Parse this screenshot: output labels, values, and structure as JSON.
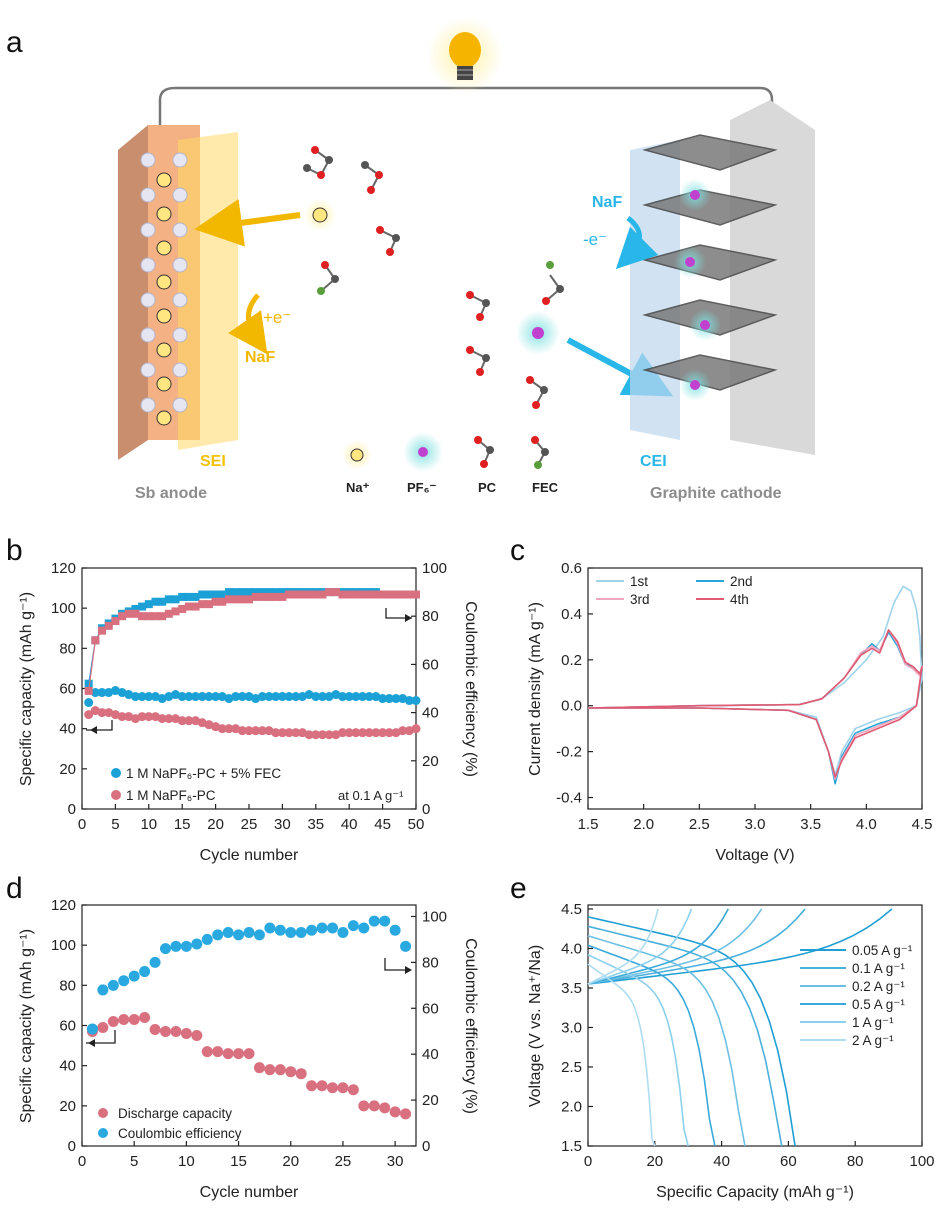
{
  "panel_labels": {
    "a": "a",
    "b": "b",
    "c": "c",
    "d": "d",
    "e": "e"
  },
  "schematic": {
    "anode_label": "Sb anode",
    "cathode_label": "Graphite cathode",
    "sei_label": "SEI",
    "cei_label": "CEI",
    "reduction_label": "+e⁻",
    "oxidation_label": "-e⁻",
    "naf_anode": "NaF",
    "naf_cathode": "NaF",
    "legend": [
      "Na⁺",
      "PF₆⁻",
      "PC",
      "FEC"
    ],
    "colors": {
      "anode": "#f4b183",
      "sei": "#ffd966",
      "cei": "#bdd7ee",
      "cathode": "#d9d9d9",
      "arrow_yellow": "#f2b800",
      "arrow_blue": "#29b6e8"
    }
  },
  "chart_data": [
    {
      "id": "b",
      "type": "scatter",
      "xlabel": "Cycle number",
      "ylabel": "Specific capacity (mAh g⁻¹)",
      "y2label": "Coulombic efficiency (%)",
      "xlim": [
        0,
        50
      ],
      "ylim": [
        0,
        120
      ],
      "y2lim": [
        0,
        100
      ],
      "xticks": [
        "0",
        "5",
        "10",
        "15",
        "20",
        "25",
        "30",
        "35",
        "40",
        "45",
        "50"
      ],
      "yticks": [
        "0",
        "20",
        "40",
        "60",
        "80",
        "100",
        "120"
      ],
      "y2ticks": [
        "0",
        "20",
        "40",
        "60",
        "80",
        "100"
      ],
      "annotation": "at 0.1 A g⁻¹",
      "legend": [
        "1 M NaPF₆-PC + 5% FEC",
        "1 M NaPF₆-PC"
      ],
      "series": [
        {
          "name": "FEC capacity",
          "color": "#1ba1d6",
          "marker": "circle",
          "axis": "left",
          "x": [
            1,
            2,
            3,
            4,
            5,
            6,
            7,
            8,
            9,
            10,
            11,
            12,
            13,
            14,
            15,
            16,
            17,
            18,
            19,
            20,
            21,
            22,
            23,
            24,
            25,
            26,
            27,
            28,
            29,
            30,
            31,
            32,
            33,
            34,
            35,
            36,
            37,
            38,
            39,
            40,
            41,
            42,
            43,
            44,
            45,
            46,
            47,
            48,
            49,
            50
          ],
          "values": [
            53,
            58,
            58,
            58,
            59,
            58,
            57,
            56,
            56,
            56,
            56,
            55,
            56,
            57,
            56,
            56,
            56,
            56,
            56,
            56,
            56,
            55,
            56,
            56,
            56,
            55,
            56,
            56,
            56,
            56,
            56,
            56,
            56,
            57,
            56,
            56,
            56,
            57,
            56,
            56,
            56,
            56,
            56,
            56,
            55,
            55,
            55,
            55,
            54,
            54
          ]
        },
        {
          "name": "PC capacity",
          "color": "#d9707f",
          "marker": "circle",
          "axis": "left",
          "x": [
            1,
            2,
            3,
            4,
            5,
            6,
            7,
            8,
            9,
            10,
            11,
            12,
            13,
            14,
            15,
            16,
            17,
            18,
            19,
            20,
            21,
            22,
            23,
            24,
            25,
            26,
            27,
            28,
            29,
            30,
            31,
            32,
            33,
            34,
            35,
            36,
            37,
            38,
            39,
            40,
            41,
            42,
            43,
            44,
            45,
            46,
            47,
            48,
            49,
            50
          ],
          "values": [
            47,
            49,
            48,
            48,
            47,
            46,
            46,
            45,
            46,
            46,
            46,
            45,
            45,
            45,
            44,
            44,
            44,
            43,
            42,
            41,
            40,
            40,
            40,
            39,
            39,
            39,
            39,
            39,
            38,
            38,
            38,
            38,
            38,
            37,
            37,
            37,
            37,
            37,
            38,
            38,
            38,
            38,
            38,
            38,
            38,
            38,
            38,
            39,
            39,
            40
          ]
        },
        {
          "name": "FEC CE",
          "color": "#1ba1d6",
          "marker": "square",
          "axis": "right",
          "x": [
            1,
            2,
            3,
            4,
            5,
            6,
            7,
            8,
            9,
            10,
            11,
            12,
            13,
            14,
            15,
            16,
            17,
            18,
            19,
            20,
            21,
            22,
            23,
            24,
            25,
            26,
            27,
            28,
            29,
            30,
            31,
            32,
            33,
            34,
            35,
            36,
            37,
            38,
            39,
            40,
            41,
            42,
            43,
            44,
            45,
            46,
            47,
            48,
            49,
            50
          ],
          "values": [
            52,
            70,
            75,
            77,
            79,
            81,
            82,
            83,
            84,
            85,
            86,
            86,
            87,
            87,
            88,
            88,
            88,
            89,
            89,
            89,
            89,
            90,
            90,
            90,
            90,
            90,
            90,
            90,
            90,
            90,
            90,
            90,
            90,
            90,
            90,
            90,
            90,
            90,
            90,
            90,
            90,
            90,
            90,
            90,
            89,
            89,
            89,
            89,
            89,
            89
          ]
        },
        {
          "name": "PC CE",
          "color": "#d9707f",
          "marker": "square",
          "axis": "right",
          "x": [
            1,
            2,
            3,
            4,
            5,
            6,
            7,
            8,
            9,
            10,
            11,
            12,
            13,
            14,
            15,
            16,
            17,
            18,
            19,
            20,
            21,
            22,
            23,
            24,
            25,
            26,
            27,
            28,
            29,
            30,
            31,
            32,
            33,
            34,
            35,
            36,
            37,
            38,
            39,
            40,
            41,
            42,
            43,
            44,
            45,
            46,
            47,
            48,
            49,
            50
          ],
          "values": [
            49,
            70,
            74,
            76,
            78,
            80,
            81,
            81,
            80,
            80,
            80,
            80,
            81,
            82,
            83,
            84,
            84,
            85,
            85,
            86,
            86,
            87,
            87,
            87,
            87,
            88,
            88,
            88,
            88,
            88,
            89,
            89,
            89,
            89,
            89,
            89,
            90,
            90,
            89,
            89,
            89,
            89,
            89,
            89,
            89,
            89,
            89,
            89,
            89,
            89
          ]
        }
      ]
    },
    {
      "id": "c",
      "type": "line",
      "xlabel": "Voltage (V)",
      "ylabel": "Current density (mA g⁻¹)",
      "xlim": [
        1.5,
        4.5
      ],
      "ylim": [
        -0.45,
        0.6
      ],
      "xticks": [
        "1.5",
        "2.0",
        "2.5",
        "3.0",
        "3.5",
        "4.0",
        "4.5"
      ],
      "yticks": [
        "-0.4",
        "-0.2",
        "0.0",
        "0.2",
        "0.4",
        "0.6"
      ],
      "legend": [
        "1st",
        "2nd",
        "3rd",
        "4th"
      ],
      "series": [
        {
          "name": "1st",
          "color": "#9fd3ec",
          "x": [
            1.5,
            2.5,
            3.4,
            3.6,
            3.8,
            4.0,
            4.15,
            4.25,
            4.33,
            4.4,
            4.45,
            4.48,
            4.5,
            4.45,
            4.3,
            4.1,
            3.9,
            3.78,
            3.72,
            3.66,
            3.55,
            3.3,
            2.5,
            1.5
          ],
          "y": [
            -0.01,
            0.0,
            0.005,
            0.03,
            0.1,
            0.2,
            0.3,
            0.45,
            0.52,
            0.5,
            0.42,
            0.3,
            0.12,
            0.0,
            -0.03,
            -0.06,
            -0.1,
            -0.2,
            -0.3,
            -0.2,
            -0.05,
            -0.02,
            -0.01,
            -0.01
          ]
        },
        {
          "name": "2nd",
          "color": "#2aa5d8",
          "x": [
            1.5,
            2.5,
            3.4,
            3.6,
            3.8,
            3.95,
            4.05,
            4.12,
            4.2,
            4.28,
            4.35,
            4.42,
            4.48,
            4.5,
            4.45,
            4.3,
            4.1,
            3.9,
            3.78,
            3.72,
            3.66,
            3.55,
            3.3,
            2.5,
            1.5
          ],
          "y": [
            -0.01,
            0.0,
            0.005,
            0.03,
            0.12,
            0.22,
            0.27,
            0.24,
            0.32,
            0.26,
            0.18,
            0.17,
            0.14,
            0.16,
            0.0,
            -0.05,
            -0.08,
            -0.12,
            -0.22,
            -0.34,
            -0.2,
            -0.06,
            -0.02,
            -0.01,
            -0.01
          ]
        },
        {
          "name": "3rd",
          "color": "#f0a6bd",
          "x": [
            1.5,
            2.5,
            3.4,
            3.6,
            3.8,
            3.95,
            4.05,
            4.12,
            4.2,
            4.28,
            4.35,
            4.42,
            4.48,
            4.5,
            4.45,
            4.3,
            4.1,
            3.9,
            3.78,
            3.72,
            3.66,
            3.55,
            3.3,
            2.5,
            1.5
          ],
          "y": [
            -0.01,
            0.0,
            0.005,
            0.03,
            0.12,
            0.23,
            0.26,
            0.24,
            0.33,
            0.27,
            0.18,
            0.16,
            0.13,
            0.17,
            0.0,
            -0.05,
            -0.09,
            -0.13,
            -0.23,
            -0.32,
            -0.2,
            -0.06,
            -0.02,
            -0.01,
            -0.01
          ]
        },
        {
          "name": "4th",
          "color": "#e05a72",
          "x": [
            1.5,
            2.5,
            3.4,
            3.6,
            3.8,
            3.95,
            4.05,
            4.12,
            4.2,
            4.28,
            4.35,
            4.42,
            4.48,
            4.5,
            4.45,
            4.3,
            4.1,
            3.9,
            3.78,
            3.72,
            3.66,
            3.55,
            3.3,
            2.5,
            1.5
          ],
          "y": [
            -0.01,
            0.0,
            0.005,
            0.03,
            0.12,
            0.22,
            0.25,
            0.23,
            0.33,
            0.28,
            0.19,
            0.17,
            0.14,
            0.17,
            0.0,
            -0.06,
            -0.1,
            -0.14,
            -0.24,
            -0.31,
            -0.2,
            -0.06,
            -0.02,
            -0.01,
            -0.01
          ]
        }
      ]
    },
    {
      "id": "d",
      "type": "scatter",
      "xlabel": "Cycle number",
      "ylabel": "Specific capacity (mAh g⁻¹)",
      "y2label": "Coulombic efficiency (%)",
      "xlim": [
        0,
        32
      ],
      "ylim": [
        0,
        120
      ],
      "y2lim": [
        0,
        105
      ],
      "xticks": [
        "0",
        "5",
        "10",
        "15",
        "20",
        "25",
        "30"
      ],
      "yticks": [
        "0",
        "20",
        "40",
        "60",
        "80",
        "100",
        "120"
      ],
      "y2ticks": [
        "0",
        "20",
        "40",
        "60",
        "80",
        "100"
      ],
      "legend": [
        "Discharge capacity",
        "Coulombic efficiency"
      ],
      "series": [
        {
          "name": "Discharge capacity",
          "color": "#d9707f",
          "axis": "left",
          "x": [
            1,
            2,
            3,
            4,
            5,
            6,
            7,
            8,
            9,
            10,
            11,
            12,
            13,
            14,
            15,
            16,
            17,
            18,
            19,
            20,
            21,
            22,
            23,
            24,
            25,
            26,
            27,
            28,
            29,
            30,
            31
          ],
          "values": [
            57,
            59,
            62,
            63,
            63,
            64,
            58,
            57,
            57,
            56,
            55,
            47,
            47,
            46,
            46,
            46,
            39,
            38,
            38,
            37,
            36,
            30,
            30,
            29,
            29,
            28,
            20,
            20,
            19,
            17,
            16
          ]
        },
        {
          "name": "Coulombic efficiency",
          "color": "#29a9e0",
          "axis": "right",
          "x": [
            1,
            2,
            3,
            4,
            5,
            6,
            7,
            8,
            9,
            10,
            11,
            12,
            13,
            14,
            15,
            16,
            17,
            18,
            19,
            20,
            21,
            22,
            23,
            24,
            25,
            26,
            27,
            28,
            29,
            30,
            31
          ],
          "values": [
            51,
            68,
            70,
            72,
            74,
            76,
            80,
            86,
            87,
            87,
            88,
            90,
            92,
            93,
            92,
            93,
            92,
            95,
            94,
            93,
            93,
            94,
            95,
            95,
            93,
            96,
            95,
            98,
            98,
            94,
            87
          ]
        }
      ]
    },
    {
      "id": "e",
      "type": "line",
      "xlabel": "Specific Capacity (mAh g⁻¹)",
      "ylabel": "Voltage (V vs. Na⁺/Na)",
      "xlim": [
        0,
        100
      ],
      "ylim": [
        1.5,
        4.55
      ],
      "xticks": [
        "0",
        "20",
        "40",
        "60",
        "80",
        "100"
      ],
      "yticks": [
        "1.5",
        "2.0",
        "2.5",
        "3.0",
        "3.5",
        "4.0",
        "4.5"
      ],
      "legend": [
        "0.05 A g⁻¹",
        "0.1 A g⁻¹",
        "0.2 A g⁻¹",
        "0.5 A g⁻¹",
        "1 A g⁻¹",
        "2 A g⁻¹"
      ],
      "series": [
        {
          "name": "0.05 A g⁻¹",
          "color": "#1f9fd4",
          "charge_end": 91,
          "discharge_end": 62
        },
        {
          "name": "0.1 A g⁻¹",
          "color": "#4ab0dc",
          "charge_end": 65,
          "discharge_end": 58
        },
        {
          "name": "0.2 A g⁻¹",
          "color": "#6fc0e3",
          "charge_end": 52,
          "discharge_end": 47
        },
        {
          "name": "0.5 A g⁻¹",
          "color": "#3aa9da",
          "charge_end": 42,
          "discharge_end": 38
        },
        {
          "name": "1 A g⁻¹",
          "color": "#8cd0ec",
          "charge_end": 31,
          "discharge_end": 30
        },
        {
          "name": "2 A g⁻¹",
          "color": "#aedcf0",
          "charge_end": 21,
          "discharge_end": 20
        }
      ]
    }
  ]
}
